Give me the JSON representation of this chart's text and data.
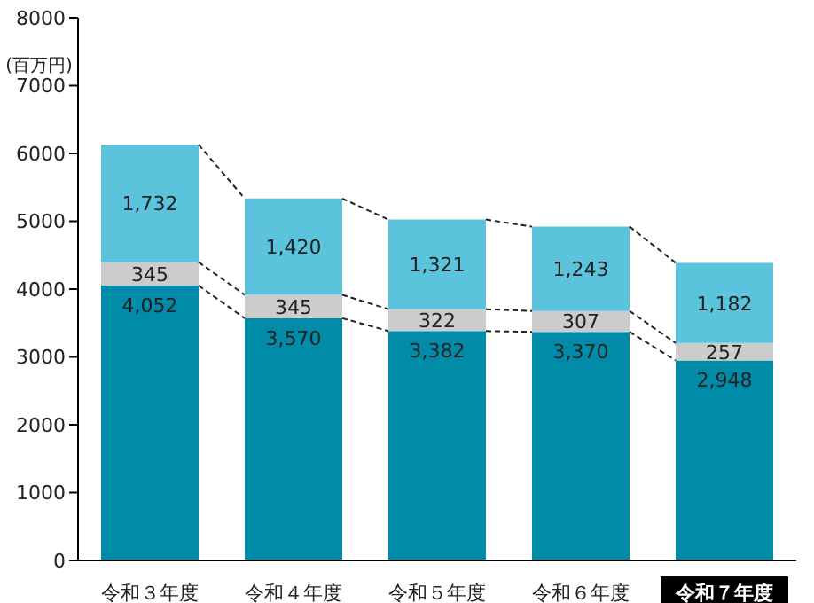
{
  "chart_data": {
    "type": "bar",
    "stacked": true,
    "ylabel": "(百万円)",
    "categories": [
      "令和３年度",
      "令和４年度",
      "令和５年度",
      "令和６年度",
      "令和７年度"
    ],
    "series": [
      {
        "color": "#008ba8",
        "values": [
          4052,
          3570,
          3382,
          3370,
          2948
        ],
        "value_labels": [
          "4,052",
          "3,570",
          "3,382",
          "3,370",
          "2,948"
        ]
      },
      {
        "color": "#cccccc",
        "values": [
          345,
          345,
          322,
          307,
          257
        ],
        "value_labels": [
          "345",
          "345",
          "322",
          "307",
          "257"
        ]
      },
      {
        "color": "#5bc3dc",
        "values": [
          1732,
          1420,
          1321,
          1243,
          1182
        ],
        "value_labels": [
          "1,732",
          "1,420",
          "1,321",
          "1,243",
          "1,182"
        ]
      }
    ],
    "ylim": [
      0,
      8000
    ],
    "yticks": [
      0,
      1000,
      2000,
      3000,
      4000,
      5000,
      6000,
      7000,
      8000
    ],
    "grid": false,
    "legend": false
  }
}
